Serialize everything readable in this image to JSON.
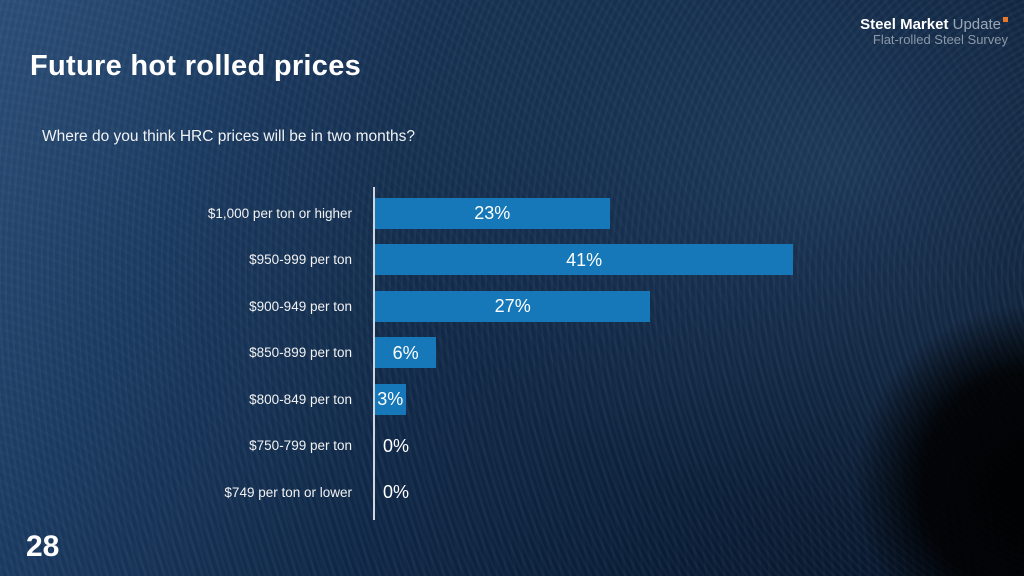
{
  "slide": {
    "title": "Future hot rolled prices",
    "question": "Where do you think HRC prices will be in two months?",
    "page_number": "28",
    "logo": {
      "line1_bold": "Steel Market",
      "line1_light": " Update",
      "line2": "Flat-rolled Steel Survey",
      "accent_color": "#e8792b"
    }
  },
  "chart_data": {
    "type": "bar",
    "orientation": "horizontal",
    "title": "Where do you think HRC prices will be in two months?",
    "categories": [
      "$1,000 per ton or higher",
      "$950-999 per ton",
      "$900-949 per ton",
      "$850-899 per ton",
      "$800-849 per ton",
      "$750-799 per ton",
      "$749 per ton or lower"
    ],
    "values": [
      23,
      41,
      27,
      6,
      3,
      0,
      0
    ],
    "value_suffix": "%",
    "bar_color": "#1778b9",
    "axis_color": "#cfd6dd",
    "xlabel": "",
    "ylabel": "",
    "xlim": [
      0,
      45
    ],
    "grid": false,
    "legend": false
  }
}
